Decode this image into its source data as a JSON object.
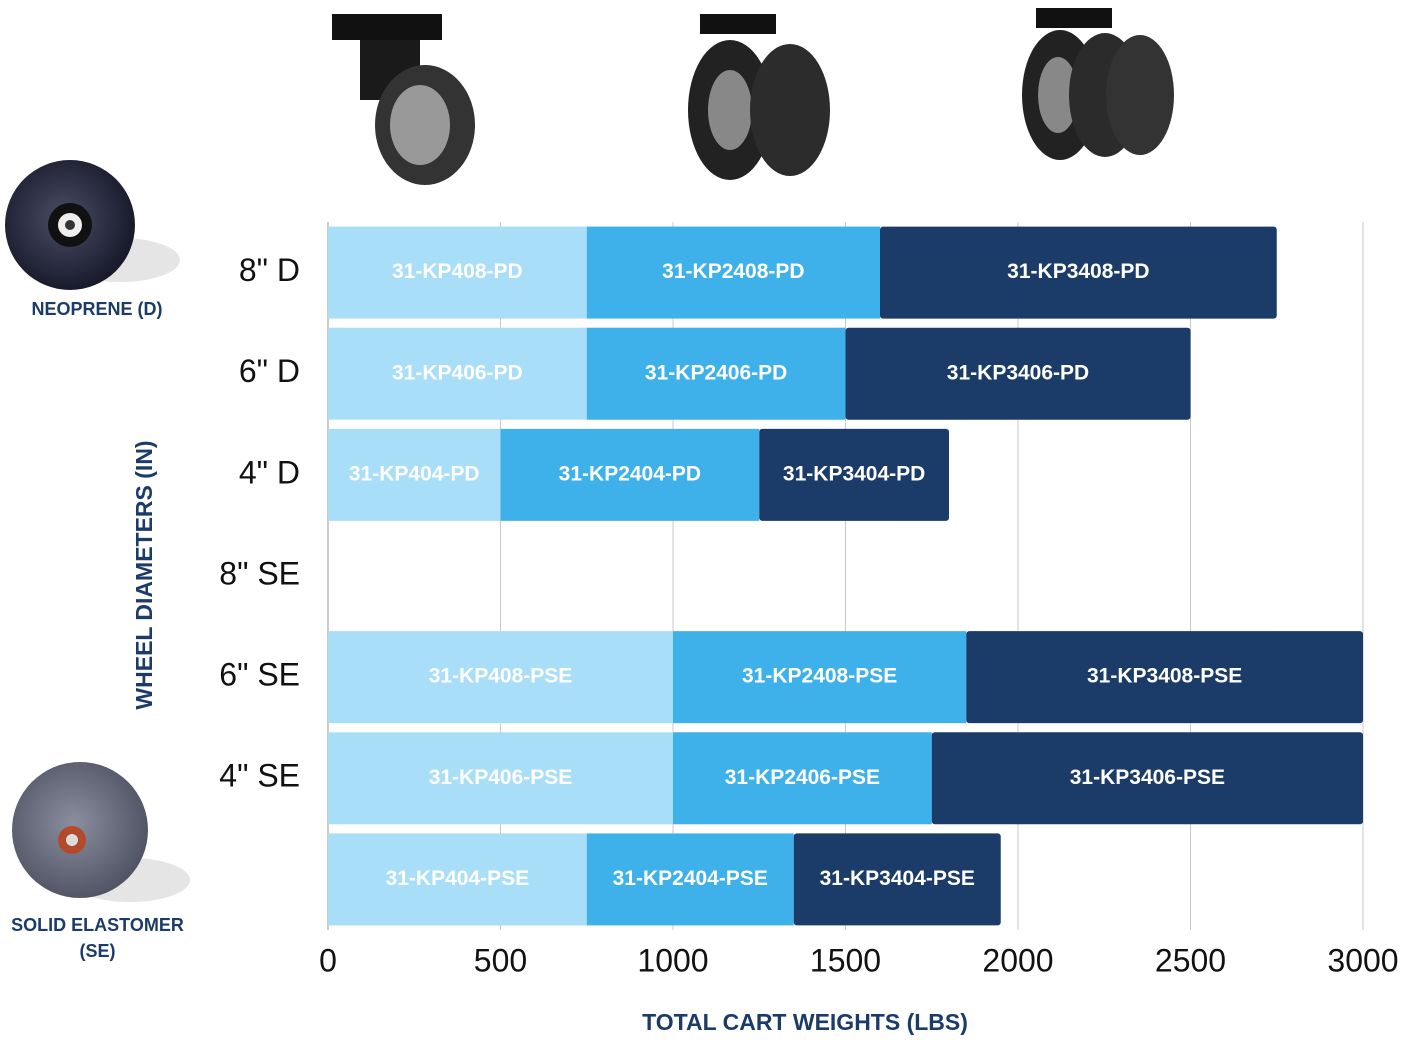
{
  "chart_data": {
    "type": "stacked-bar-horizontal",
    "x_label": "TOTAL CART WEIGHTS (LBS)",
    "y_label": "WHEEL DIAMETERS (IN)",
    "annotations": [
      "NEOPRENE (D)",
      "SOLID ELASTOMER (SE)"
    ],
    "categories": [
      "8\" D",
      "6\" D",
      "4\" D",
      "8\" SE",
      "6\" SE",
      "4\" SE",
      null
    ],
    "series": [
      {
        "color": "#a9def9",
        "values": [
          750,
          750,
          500,
          null,
          1000,
          1000,
          750
        ],
        "labels": [
          "31-KP408-PD",
          "31-KP406-PD",
          "31-KP404-PD",
          null,
          "31-KP408-PSE",
          "31-KP406-PSE",
          "31-KP404-PSE"
        ]
      },
      {
        "color": "#3eb0ea",
        "values": [
          850,
          750,
          750,
          null,
          850,
          750,
          600
        ],
        "labels": [
          "31-KP2408-PD",
          "31-KP2406-PD",
          "31-KP2404-PD",
          null,
          "31-KP2408-PSE",
          "31-KP2406-PSE",
          "31-KP2404-PSE"
        ]
      },
      {
        "color": "#1b3b68",
        "values": [
          1150,
          1000,
          550,
          null,
          1150,
          1250,
          600
        ],
        "labels": [
          "31-KP3408-PD",
          "31-KP3406-PD",
          "31-KP3404-PD",
          null,
          "31-KP3408-PSE",
          "31-KP3406-PSE",
          "31-KP3404-PSE"
        ]
      }
    ],
    "xlim": [
      0,
      3000
    ],
    "xticks": [
      0,
      500,
      1000,
      1500,
      2000,
      2500,
      3000
    ],
    "grid": true
  }
}
